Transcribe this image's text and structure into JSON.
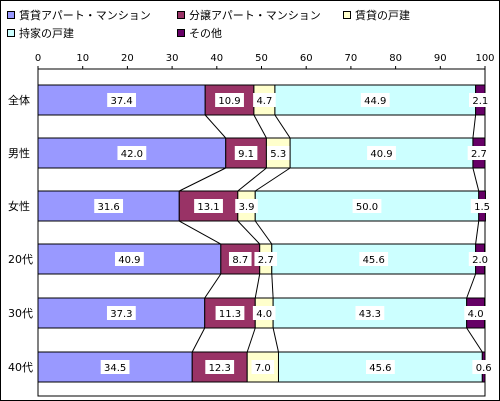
{
  "chart_data": {
    "type": "bar",
    "stacked": true,
    "orientation": "horizontal",
    "xlim": [
      0,
      100
    ],
    "x_ticks": [
      "0",
      "10",
      "20",
      "30",
      "40",
      "50",
      "60",
      "70",
      "80",
      "90",
      "100"
    ],
    "categories": [
      "全体",
      "男性",
      "女性",
      "20代",
      "30代",
      "40代"
    ],
    "series": [
      {
        "name": "賃貸アパート・マンション",
        "color": "#9999ff",
        "values": [
          37.4,
          42.0,
          31.6,
          40.9,
          37.3,
          34.5
        ],
        "labels": [
          "37.4",
          "42.0",
          "31.6",
          "40.9",
          "37.3",
          "34.5"
        ]
      },
      {
        "name": "分譲アパート・マンション",
        "color": "#993366",
        "values": [
          10.9,
          9.1,
          13.1,
          8.7,
          11.3,
          12.3
        ],
        "labels": [
          "10.9",
          "9.1",
          "13.1",
          "8.7",
          "11.3",
          "12.3"
        ]
      },
      {
        "name": "賃貸の戸建",
        "color": "#ffffcc",
        "values": [
          4.7,
          5.3,
          3.9,
          2.7,
          4.0,
          7.0
        ],
        "labels": [
          "4.7",
          "5.3",
          "3.9",
          "2.7",
          "4.0",
          "7.0"
        ]
      },
      {
        "name": "持家の戸建",
        "color": "#ccffff",
        "values": [
          44.9,
          40.9,
          50.0,
          45.6,
          43.3,
          45.6
        ],
        "labels": [
          "44.9",
          "40.9",
          "50.0",
          "45.6",
          "43.3",
          "45.6"
        ]
      },
      {
        "name": "その他",
        "color": "#660066",
        "values": [
          2.1,
          2.7,
          1.5,
          2.0,
          4.0,
          0.6
        ],
        "labels": [
          "2.1",
          "2.7",
          "1.5",
          "2.0",
          "4.0",
          "0.6"
        ]
      }
    ],
    "series_lines": true,
    "legend_position": "top"
  }
}
